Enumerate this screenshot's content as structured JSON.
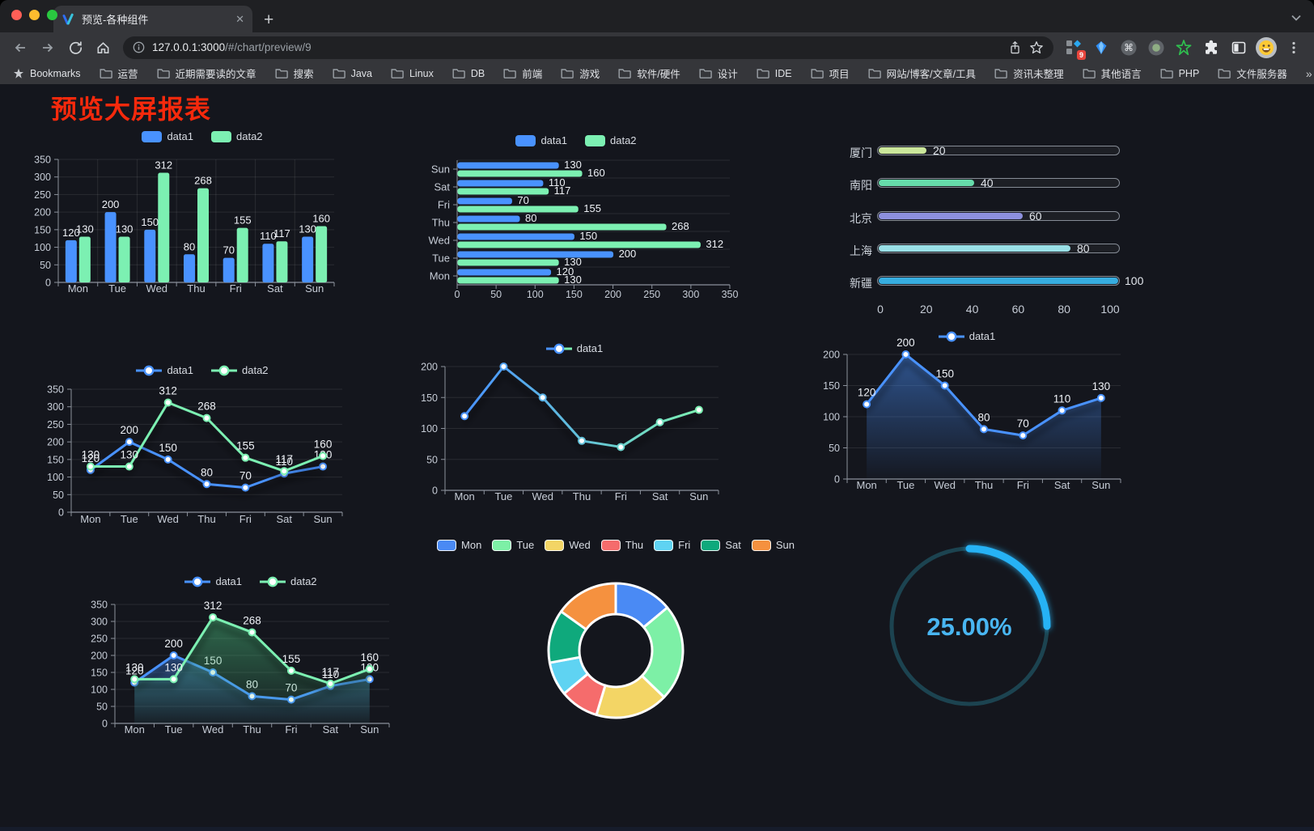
{
  "browser": {
    "tab": {
      "title": "预览-各种组件",
      "close_glyph": "✕",
      "new_tab_glyph": "+"
    },
    "url": {
      "host": "127.0.0.1:3000",
      "path": "/#/chart/preview/9"
    },
    "extensions_badge": "9",
    "bookmarks": [
      {
        "icon": "star",
        "label": "Bookmarks"
      },
      {
        "icon": "folder",
        "label": "运营"
      },
      {
        "icon": "folder",
        "label": "近期需要读的文章"
      },
      {
        "icon": "folder",
        "label": "搜索"
      },
      {
        "icon": "folder",
        "label": "Java"
      },
      {
        "icon": "folder",
        "label": "Linux"
      },
      {
        "icon": "folder",
        "label": "DB"
      },
      {
        "icon": "folder",
        "label": "前端"
      },
      {
        "icon": "folder",
        "label": "游戏"
      },
      {
        "icon": "folder",
        "label": "软件/硬件"
      },
      {
        "icon": "folder",
        "label": "设计"
      },
      {
        "icon": "folder",
        "label": "IDE"
      },
      {
        "icon": "folder",
        "label": "项目"
      },
      {
        "icon": "folder",
        "label": "网站/博客/文章/工具"
      },
      {
        "icon": "folder",
        "label": "资讯未整理"
      },
      {
        "icon": "folder",
        "label": "其他语言"
      },
      {
        "icon": "folder",
        "label": "PHP"
      },
      {
        "icon": "folder",
        "label": "文件服务器"
      }
    ],
    "bookmarks_overflow_glyph": "»",
    "other_bookmarks": {
      "icon": "folder",
      "label": "其他书签"
    }
  },
  "page": {
    "title": "预览大屏报表",
    "title_color": "#f6290c",
    "background": "#14161d"
  },
  "chart_data": [
    {
      "id": "grouped-bar",
      "type": "bar",
      "categories": [
        "Mon",
        "Tue",
        "Wed",
        "Thu",
        "Fri",
        "Sat",
        "Sun"
      ],
      "series": [
        {
          "name": "data1",
          "color": "#4992ff",
          "values": [
            120,
            200,
            150,
            80,
            70,
            110,
            130
          ]
        },
        {
          "name": "data2",
          "color": "#7cf0b2",
          "values": [
            130,
            130,
            312,
            268,
            155,
            117,
            160
          ]
        }
      ],
      "ylim": [
        0,
        350
      ],
      "ystep": 50,
      "value_labels": true,
      "legend_position": "top",
      "grid": true
    },
    {
      "id": "grouped-bar-horizontal",
      "type": "bar-horizontal",
      "categories": [
        "Mon",
        "Tue",
        "Wed",
        "Thu",
        "Fri",
        "Sat",
        "Sun"
      ],
      "series": [
        {
          "name": "data1",
          "color": "#4992ff",
          "values": [
            120,
            200,
            150,
            80,
            70,
            110,
            130
          ]
        },
        {
          "name": "data2",
          "color": "#7cf0b2",
          "values": [
            130,
            130,
            312,
            268,
            155,
            117,
            160
          ]
        }
      ],
      "xlim": [
        0,
        350
      ],
      "xstep": 50,
      "value_labels": true,
      "legend_position": "top",
      "grid": true
    },
    {
      "id": "city-progress",
      "type": "progress",
      "max": 100,
      "xticks": [
        0,
        20,
        40,
        60,
        80,
        100
      ],
      "rows": [
        {
          "label": "厦门",
          "value": 20,
          "color": "#cbe79b"
        },
        {
          "label": "南阳",
          "value": 40,
          "color": "#66dcab"
        },
        {
          "label": "北京",
          "value": 60,
          "color": "#8d90de"
        },
        {
          "label": "上海",
          "value": 80,
          "color": "#99dfe6"
        },
        {
          "label": "新疆",
          "value": 100,
          "color": "#37ade0"
        }
      ]
    },
    {
      "id": "two-line",
      "type": "line",
      "categories": [
        "Mon",
        "Tue",
        "Wed",
        "Thu",
        "Fri",
        "Sat",
        "Sun"
      ],
      "series": [
        {
          "name": "data1",
          "color": "#4992ff",
          "values": [
            120,
            200,
            150,
            80,
            70,
            110,
            130
          ]
        },
        {
          "name": "data2",
          "color": "#7cf0b2",
          "values": [
            130,
            130,
            312,
            268,
            155,
            117,
            160
          ]
        }
      ],
      "ylim": [
        0,
        350
      ],
      "ystep": 50,
      "value_labels": true,
      "legend_position": "top",
      "grid": true
    },
    {
      "id": "gradient-line",
      "type": "line",
      "categories": [
        "Mon",
        "Tue",
        "Wed",
        "Thu",
        "Fri",
        "Sat",
        "Sun"
      ],
      "series": [
        {
          "name": "data1",
          "color": "#4992ff",
          "gradient": [
            "#4992ff",
            "#7cf0b2"
          ],
          "values": [
            120,
            200,
            150,
            80,
            70,
            110,
            130
          ]
        }
      ],
      "ylim": [
        0,
        200
      ],
      "ystep": 50,
      "value_labels": false,
      "legend_position": "top",
      "grid": true
    },
    {
      "id": "area-line",
      "type": "line",
      "categories": [
        "Mon",
        "Tue",
        "Wed",
        "Thu",
        "Fri",
        "Sat",
        "Sun"
      ],
      "series": [
        {
          "name": "data1",
          "color": "#4992ff",
          "values": [
            120,
            200,
            150,
            80,
            70,
            110,
            130
          ],
          "area": [
            "rgba(73,146,255,0.50)",
            "rgba(73,146,255,0.02)"
          ]
        }
      ],
      "ylim": [
        0,
        200
      ],
      "ystep": 50,
      "value_labels": true,
      "legend_position": "top",
      "grid": true
    },
    {
      "id": "two-area-line",
      "type": "line",
      "categories": [
        "Mon",
        "Tue",
        "Wed",
        "Thu",
        "Fri",
        "Sat",
        "Sun"
      ],
      "series": [
        {
          "name": "data1",
          "color": "#4992ff",
          "values": [
            120,
            200,
            150,
            80,
            70,
            110,
            130
          ],
          "area": [
            "rgba(73,146,255,0.45)",
            "rgba(73,146,255,0.03)"
          ]
        },
        {
          "name": "data2",
          "color": "#7cf0b2",
          "values": [
            130,
            130,
            312,
            268,
            155,
            117,
            160
          ],
          "area": [
            "rgba(74,190,125,0.50)",
            "rgba(74,190,125,0.04)"
          ]
        }
      ],
      "ylim": [
        0,
        350
      ],
      "ystep": 50,
      "value_labels": true,
      "legend_position": "top",
      "grid": true
    },
    {
      "id": "donut",
      "type": "donut",
      "categories": [
        "Mon",
        "Tue",
        "Wed",
        "Thu",
        "Fri",
        "Sat",
        "Sun"
      ],
      "values": [
        120,
        200,
        150,
        80,
        70,
        110,
        130
      ],
      "colors": [
        "#4a8af4",
        "#7df0a6",
        "#f3d565",
        "#f56c6c",
        "#5fd3f2",
        "#0fa97c",
        "#f5913f"
      ],
      "legend_position": "top"
    },
    {
      "id": "ring-progress",
      "type": "ring",
      "value": 25,
      "label": "25.00%",
      "color": "#25b2f5",
      "track_color": "#1c4350",
      "text_color": "#49b6f2"
    }
  ]
}
